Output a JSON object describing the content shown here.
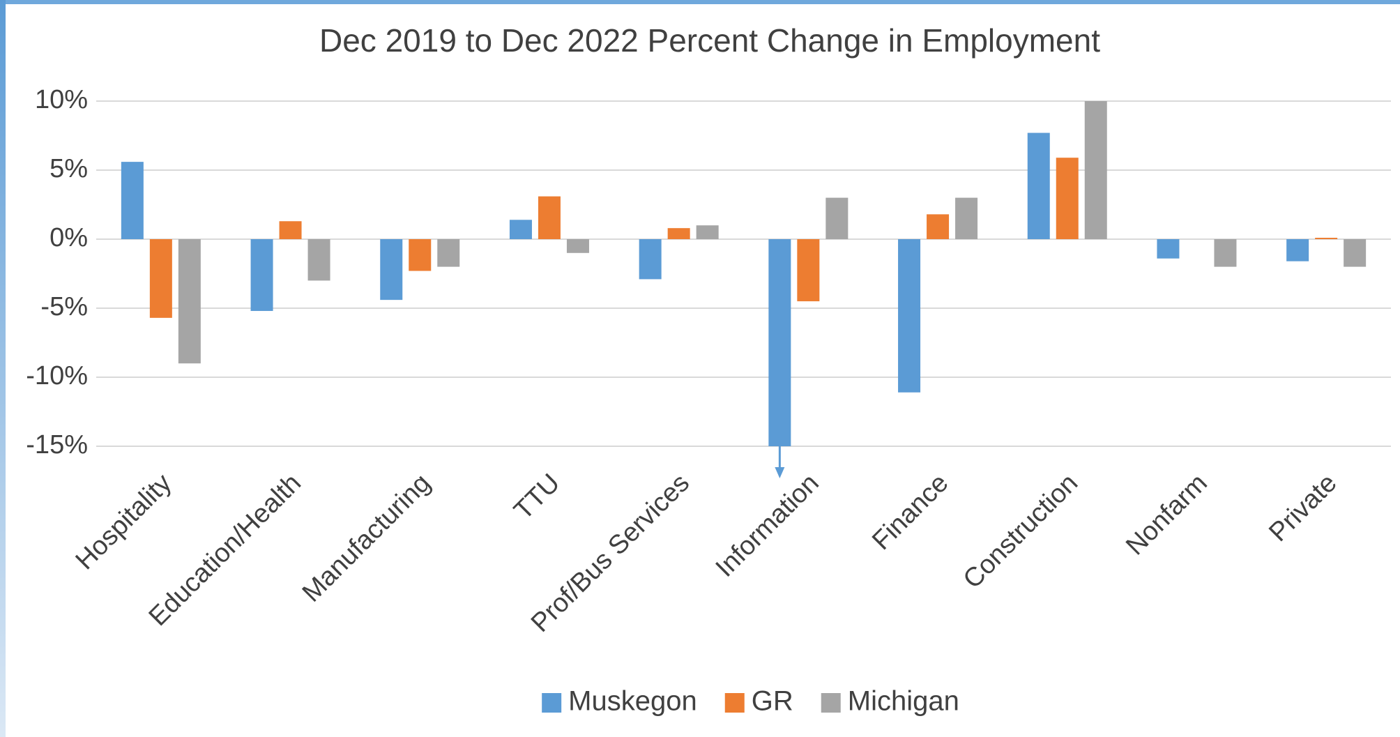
{
  "chart_data": {
    "type": "bar",
    "title": "Dec 2019 to Dec 2022 Percent Change in Employment",
    "categories": [
      "Hospitality",
      "Education/Health",
      "Manufacturing",
      "TTU",
      "Prof/Bus Services",
      "Information",
      "Finance",
      "Construction",
      "Nonfarm",
      "Private"
    ],
    "series": [
      {
        "name": "Muskegon",
        "color": "#5b9bd5",
        "values": [
          5.6,
          -5.2,
          -4.4,
          1.4,
          -2.9,
          -15,
          -11.1,
          7.7,
          -1.4,
          -1.6
        ]
      },
      {
        "name": "GR",
        "color": "#ed7d31",
        "values": [
          -5.7,
          1.3,
          -2.3,
          3.1,
          0.8,
          -4.5,
          1.8,
          5.9,
          0,
          0.1
        ]
      },
      {
        "name": "Michigan",
        "color": "#a5a5a5",
        "values": [
          -9,
          -3,
          -2,
          -1,
          1,
          3,
          3,
          10,
          -2,
          -2
        ]
      }
    ],
    "ylim": [
      -15,
      10
    ],
    "yticks": [
      {
        "value": -15,
        "label": "-15%"
      },
      {
        "value": -10,
        "label": "-10%"
      },
      {
        "value": -5,
        "label": "-5%"
      },
      {
        "value": 0,
        "label": "0%"
      },
      {
        "value": 5,
        "label": "5%"
      },
      {
        "value": 10,
        "label": "10%"
      }
    ],
    "grid": true,
    "legend": "bottom"
  }
}
